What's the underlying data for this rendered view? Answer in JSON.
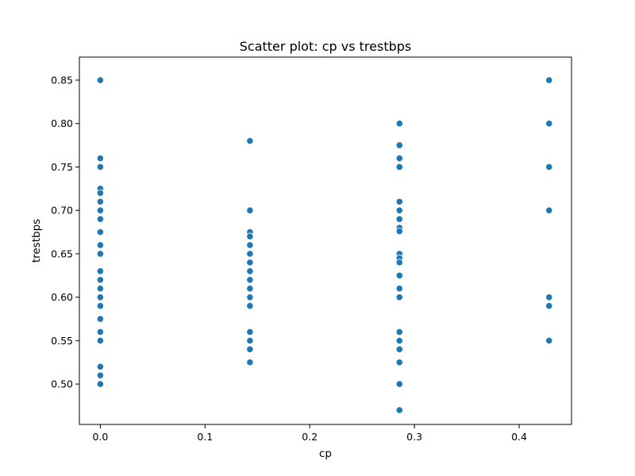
{
  "chart_data": {
    "type": "scatter",
    "title": "Scatter plot: cp vs trestbps",
    "xlabel": "cp",
    "ylabel": "trestbps",
    "xlim": [
      -0.02,
      0.45
    ],
    "ylim": [
      0.4535,
      0.8765
    ],
    "x_ticks": [
      0.0,
      0.1,
      0.2,
      0.3,
      0.4
    ],
    "x_tick_labels": [
      "0.0",
      "0.1",
      "0.2",
      "0.3",
      "0.4"
    ],
    "y_ticks": [
      0.5,
      0.55,
      0.6,
      0.65,
      0.7,
      0.75,
      0.8,
      0.85
    ],
    "y_tick_labels": [
      "0.50",
      "0.55",
      "0.60",
      "0.65",
      "0.70",
      "0.75",
      "0.80",
      "0.85"
    ],
    "grid": false,
    "marker_color": "#1f77b4",
    "series": [
      {
        "points": [
          {
            "x": 0.0,
            "y": 0.85
          },
          {
            "x": 0.0,
            "y": 0.76
          },
          {
            "x": 0.0,
            "y": 0.75
          },
          {
            "x": 0.0,
            "y": 0.725
          },
          {
            "x": 0.0,
            "y": 0.72
          },
          {
            "x": 0.0,
            "y": 0.71
          },
          {
            "x": 0.0,
            "y": 0.7
          },
          {
            "x": 0.0,
            "y": 0.69
          },
          {
            "x": 0.0,
            "y": 0.675
          },
          {
            "x": 0.0,
            "y": 0.66
          },
          {
            "x": 0.0,
            "y": 0.65
          },
          {
            "x": 0.0,
            "y": 0.63
          },
          {
            "x": 0.0,
            "y": 0.62
          },
          {
            "x": 0.0,
            "y": 0.61
          },
          {
            "x": 0.0,
            "y": 0.6
          },
          {
            "x": 0.0,
            "y": 0.59
          },
          {
            "x": 0.0,
            "y": 0.575
          },
          {
            "x": 0.0,
            "y": 0.56
          },
          {
            "x": 0.0,
            "y": 0.55
          },
          {
            "x": 0.0,
            "y": 0.52
          },
          {
            "x": 0.0,
            "y": 0.51
          },
          {
            "x": 0.0,
            "y": 0.5
          },
          {
            "x": 0.1429,
            "y": 0.78
          },
          {
            "x": 0.1429,
            "y": 0.7
          },
          {
            "x": 0.1429,
            "y": 0.675
          },
          {
            "x": 0.1429,
            "y": 0.67
          },
          {
            "x": 0.1429,
            "y": 0.66
          },
          {
            "x": 0.1429,
            "y": 0.65
          },
          {
            "x": 0.1429,
            "y": 0.64
          },
          {
            "x": 0.1429,
            "y": 0.63
          },
          {
            "x": 0.1429,
            "y": 0.62
          },
          {
            "x": 0.1429,
            "y": 0.61
          },
          {
            "x": 0.1429,
            "y": 0.6
          },
          {
            "x": 0.1429,
            "y": 0.59
          },
          {
            "x": 0.1429,
            "y": 0.56
          },
          {
            "x": 0.1429,
            "y": 0.55
          },
          {
            "x": 0.1429,
            "y": 0.54
          },
          {
            "x": 0.1429,
            "y": 0.525
          },
          {
            "x": 0.2857,
            "y": 0.8
          },
          {
            "x": 0.2857,
            "y": 0.775
          },
          {
            "x": 0.2857,
            "y": 0.76
          },
          {
            "x": 0.2857,
            "y": 0.75
          },
          {
            "x": 0.2857,
            "y": 0.71
          },
          {
            "x": 0.2857,
            "y": 0.7
          },
          {
            "x": 0.2857,
            "y": 0.69
          },
          {
            "x": 0.2857,
            "y": 0.68
          },
          {
            "x": 0.2857,
            "y": 0.676
          },
          {
            "x": 0.2857,
            "y": 0.65
          },
          {
            "x": 0.2857,
            "y": 0.645
          },
          {
            "x": 0.2857,
            "y": 0.64
          },
          {
            "x": 0.2857,
            "y": 0.625
          },
          {
            "x": 0.2857,
            "y": 0.61
          },
          {
            "x": 0.2857,
            "y": 0.6
          },
          {
            "x": 0.2857,
            "y": 0.56
          },
          {
            "x": 0.2857,
            "y": 0.55
          },
          {
            "x": 0.2857,
            "y": 0.54
          },
          {
            "x": 0.2857,
            "y": 0.525
          },
          {
            "x": 0.2857,
            "y": 0.5
          },
          {
            "x": 0.2857,
            "y": 0.47
          },
          {
            "x": 0.4286,
            "y": 0.85
          },
          {
            "x": 0.4286,
            "y": 0.8
          },
          {
            "x": 0.4286,
            "y": 0.75
          },
          {
            "x": 0.4286,
            "y": 0.7
          },
          {
            "x": 0.4286,
            "y": 0.6
          },
          {
            "x": 0.4286,
            "y": 0.59
          },
          {
            "x": 0.4286,
            "y": 0.55
          }
        ]
      }
    ]
  }
}
